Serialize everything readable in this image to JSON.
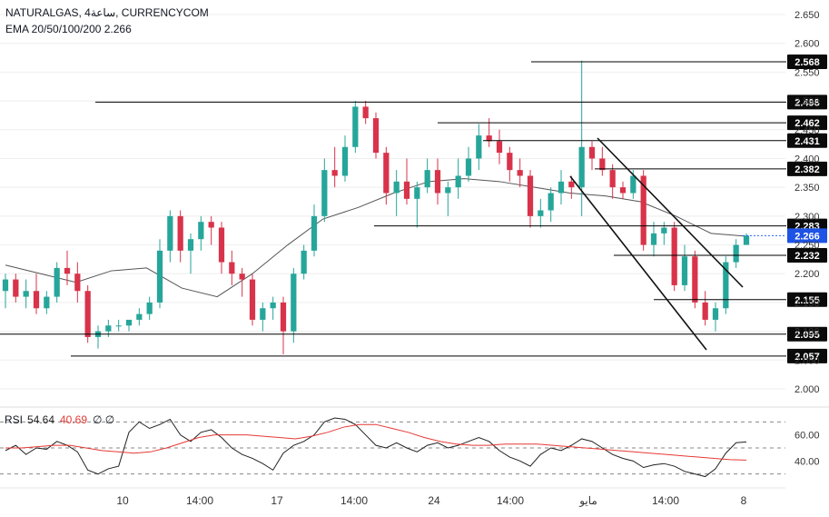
{
  "header": {
    "symbol_line": "NATURALGAS, 4ساعة, CURRENCYCOM",
    "indicator_line": "EMA 20/50/100/200  2.266"
  },
  "rsi_header": {
    "name": "RSI",
    "value": "54.64",
    "ma_value": "40.69",
    "extra": "∅ ∅"
  },
  "colors": {
    "up": "#26a69a",
    "down": "#d8334a",
    "wick": "#333333",
    "line": "#000000",
    "ema": "#555555",
    "rsi": "#222222",
    "rsi_ma": "#e53935",
    "grid": "#eeeeee",
    "label_bg": "#0a0a0a",
    "label_text": "#ffffff"
  },
  "chart_data": [
    {
      "type": "candlestick",
      "title": "NATURALGAS, 4ساعة, CURRENCYCOM",
      "y_axis": {
        "ticks": [
          "2.000",
          "2.050",
          "2.100",
          "2.150",
          "2.200",
          "2.250",
          "2.300",
          "2.350",
          "2.400",
          "2.450",
          "2.500",
          "2.550",
          "2.600",
          "2.650"
        ],
        "tick_values": [
          2.0,
          2.05,
          2.1,
          2.15,
          2.2,
          2.25,
          2.3,
          2.35,
          2.4,
          2.45,
          2.5,
          2.55,
          2.6,
          2.65
        ],
        "ylim": [
          1.975,
          2.675
        ]
      },
      "x_axis": {
        "ticks": [
          "10",
          "14:00",
          "17",
          "14:00",
          "24",
          "14:00",
          "مايو",
          "14:00",
          "8"
        ]
      },
      "horizontal_levels": [
        {
          "label": "2.568",
          "value": 2.568
        },
        {
          "label": "2.498",
          "value": 2.498
        },
        {
          "label": "2.462",
          "value": 2.462
        },
        {
          "label": "2.431",
          "value": 2.431
        },
        {
          "label": "2.382",
          "value": 2.382
        },
        {
          "label": "2.283",
          "value": 2.283
        },
        {
          "label": "2.232",
          "value": 2.232
        },
        {
          "label": "2.155",
          "value": 2.155
        },
        {
          "label": "2.095",
          "value": 2.095
        },
        {
          "label": "2.057",
          "value": 2.057
        }
      ],
      "last_price": {
        "label": "2.266",
        "value": 2.266
      },
      "series": [
        {
          "name": "EMA 20/50/100/200",
          "values": [
            2.215,
            2.2,
            2.185,
            2.205,
            2.21,
            2.175,
            2.16,
            2.2,
            2.25,
            2.295,
            2.315,
            2.34,
            2.36,
            2.365,
            2.36,
            2.35,
            2.34,
            2.335,
            2.325,
            2.3,
            2.27,
            2.265
          ]
        }
      ],
      "ohlc": [
        [
          2.17,
          2.2,
          2.14,
          2.19
        ],
        [
          2.19,
          2.2,
          2.15,
          2.16
        ],
        [
          2.16,
          2.19,
          2.14,
          2.17
        ],
        [
          2.17,
          2.2,
          2.13,
          2.14
        ],
        [
          2.14,
          2.17,
          2.13,
          2.16
        ],
        [
          2.16,
          2.22,
          2.15,
          2.21
        ],
        [
          2.21,
          2.24,
          2.18,
          2.2
        ],
        [
          2.2,
          2.22,
          2.15,
          2.17
        ],
        [
          2.17,
          2.18,
          2.08,
          2.09
        ],
        [
          2.09,
          2.11,
          2.07,
          2.1
        ],
        [
          2.1,
          2.12,
          2.09,
          2.11
        ],
        [
          2.11,
          2.12,
          2.1,
          2.11
        ],
        [
          2.11,
          2.12,
          2.1,
          2.12
        ],
        [
          2.12,
          2.14,
          2.11,
          2.13
        ],
        [
          2.13,
          2.16,
          2.12,
          2.15
        ],
        [
          2.15,
          2.26,
          2.14,
          2.24
        ],
        [
          2.24,
          2.31,
          2.22,
          2.3
        ],
        [
          2.3,
          2.31,
          2.22,
          2.24
        ],
        [
          2.24,
          2.27,
          2.2,
          2.26
        ],
        [
          2.26,
          2.3,
          2.24,
          2.29
        ],
        [
          2.29,
          2.3,
          2.25,
          2.28
        ],
        [
          2.28,
          2.29,
          2.2,
          2.22
        ],
        [
          2.22,
          2.24,
          2.18,
          2.2
        ],
        [
          2.2,
          2.21,
          2.16,
          2.19
        ],
        [
          2.19,
          2.2,
          2.11,
          2.12
        ],
        [
          2.12,
          2.15,
          2.1,
          2.14
        ],
        [
          2.14,
          2.16,
          2.12,
          2.15
        ],
        [
          2.15,
          2.16,
          2.06,
          2.1
        ],
        [
          2.1,
          2.21,
          2.08,
          2.2
        ],
        [
          2.2,
          2.25,
          2.19,
          2.24
        ],
        [
          2.24,
          2.32,
          2.23,
          2.3
        ],
        [
          2.3,
          2.4,
          2.29,
          2.38
        ],
        [
          2.38,
          2.42,
          2.35,
          2.37
        ],
        [
          2.37,
          2.44,
          2.36,
          2.42
        ],
        [
          2.42,
          2.5,
          2.41,
          2.49
        ],
        [
          2.49,
          2.5,
          2.46,
          2.47
        ],
        [
          2.47,
          2.48,
          2.4,
          2.41
        ],
        [
          2.41,
          2.42,
          2.32,
          2.34
        ],
        [
          2.34,
          2.38,
          2.3,
          2.36
        ],
        [
          2.36,
          2.4,
          2.32,
          2.33
        ],
        [
          2.33,
          2.36,
          2.28,
          2.35
        ],
        [
          2.35,
          2.4,
          2.34,
          2.38
        ],
        [
          2.38,
          2.4,
          2.32,
          2.34
        ],
        [
          2.34,
          2.36,
          2.3,
          2.35
        ],
        [
          2.35,
          2.4,
          2.33,
          2.37
        ],
        [
          2.37,
          2.42,
          2.36,
          2.4
        ],
        [
          2.4,
          2.46,
          2.38,
          2.44
        ],
        [
          2.44,
          2.47,
          2.42,
          2.43
        ],
        [
          2.43,
          2.45,
          2.39,
          2.41
        ],
        [
          2.41,
          2.42,
          2.36,
          2.38
        ],
        [
          2.38,
          2.4,
          2.35,
          2.37
        ],
        [
          2.37,
          2.38,
          2.28,
          2.3
        ],
        [
          2.3,
          2.33,
          2.28,
          2.31
        ],
        [
          2.31,
          2.35,
          2.29,
          2.34
        ],
        [
          2.34,
          2.38,
          2.32,
          2.36
        ],
        [
          2.36,
          2.37,
          2.33,
          2.35
        ],
        [
          2.35,
          2.57,
          2.3,
          2.42
        ],
        [
          2.42,
          2.43,
          2.38,
          2.4
        ],
        [
          2.4,
          2.42,
          2.37,
          2.38
        ],
        [
          2.38,
          2.39,
          2.33,
          2.35
        ],
        [
          2.35,
          2.36,
          2.33,
          2.34
        ],
        [
          2.34,
          2.38,
          2.33,
          2.37
        ],
        [
          2.37,
          2.38,
          2.24,
          2.25
        ],
        [
          2.25,
          2.29,
          2.23,
          2.27
        ],
        [
          2.27,
          2.29,
          2.25,
          2.28
        ],
        [
          2.28,
          2.29,
          2.17,
          2.18
        ],
        [
          2.18,
          2.25,
          2.17,
          2.23
        ],
        [
          2.23,
          2.24,
          2.14,
          2.15
        ],
        [
          2.15,
          2.17,
          2.11,
          2.12
        ],
        [
          2.12,
          2.15,
          2.1,
          2.14
        ],
        [
          2.14,
          2.23,
          2.13,
          2.22
        ],
        [
          2.22,
          2.26,
          2.21,
          2.25
        ],
        [
          2.25,
          2.27,
          2.25,
          2.266
        ]
      ]
    },
    {
      "type": "line",
      "title": "RSI",
      "y_axis": {
        "ticks": [
          "60.00",
          "40.00"
        ],
        "tick_values": [
          60,
          40
        ],
        "ylim": [
          20,
          80
        ]
      },
      "band_levels": [
        70,
        50,
        30
      ],
      "series": [
        {
          "name": "RSI",
          "values": [
            48,
            52,
            45,
            50,
            49,
            55,
            52,
            47,
            33,
            30,
            34,
            36,
            62,
            70,
            65,
            68,
            72,
            60,
            55,
            62,
            64,
            58,
            50,
            45,
            42,
            38,
            33,
            46,
            52,
            55,
            60,
            70,
            73,
            72,
            68,
            60,
            52,
            50,
            54,
            50,
            47,
            52,
            54,
            50,
            52,
            55,
            58,
            55,
            48,
            43,
            40,
            36,
            45,
            50,
            48,
            52,
            57,
            55,
            50,
            45,
            42,
            40,
            35,
            37,
            38,
            36,
            32,
            30,
            28,
            34,
            46,
            54,
            54.64
          ]
        },
        {
          "name": "RSI MA",
          "values": [
            50,
            50,
            51,
            52,
            52,
            50,
            48,
            47,
            46,
            47,
            50,
            54,
            58,
            60,
            60,
            60,
            59,
            58,
            57,
            59,
            62,
            66,
            68,
            68,
            65,
            62,
            58,
            55,
            53,
            52,
            52,
            53,
            53,
            53,
            52,
            51,
            50,
            49,
            48,
            47,
            46,
            45,
            44,
            43,
            42,
            41,
            40.69
          ]
        }
      ]
    }
  ]
}
